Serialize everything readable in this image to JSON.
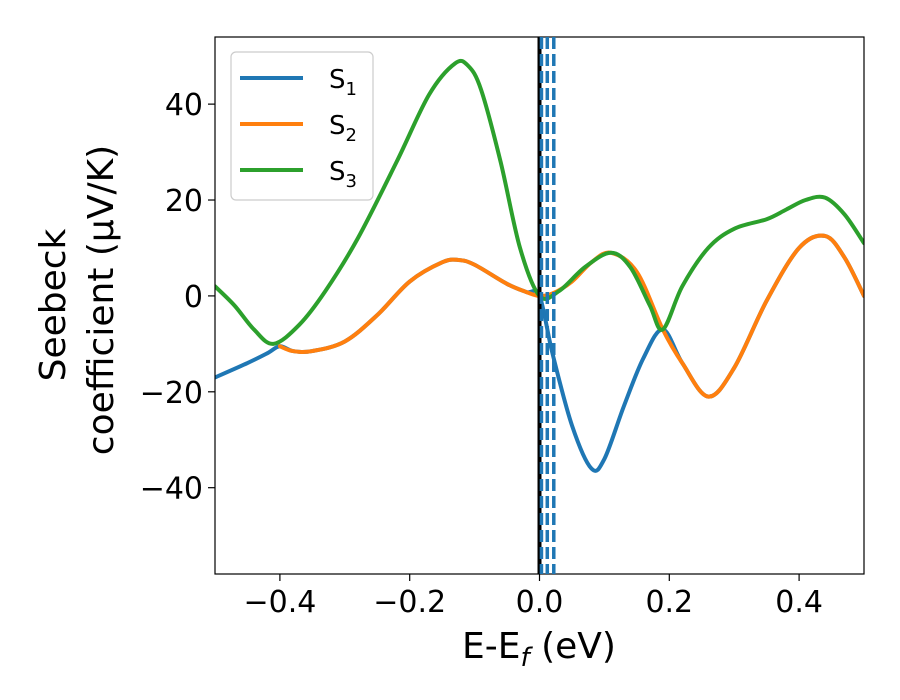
{
  "chart_data": {
    "type": "line",
    "title": "",
    "xlabel_main": "E-E",
    "xlabel_sub": "f",
    "xlabel_unit": " (eV)",
    "ylabel_line1": "Seebeck",
    "ylabel_line2": "coefficient  (μV/K)",
    "xlim": [
      -0.5,
      0.5
    ],
    "ylim": [
      -58,
      54
    ],
    "xticks": [
      -0.4,
      -0.2,
      0.0,
      0.2,
      0.4
    ],
    "xtick_labels": [
      "−0.4",
      "−0.2",
      "0.0",
      "0.2",
      "0.4"
    ],
    "yticks": [
      -40,
      -20,
      0,
      20,
      40
    ],
    "ytick_labels": [
      "−40",
      "−20",
      "0",
      "20",
      "40"
    ],
    "grid": false,
    "legend_position": "upper-left",
    "series": [
      {
        "name": "S",
        "subscript": "1",
        "color": "#1f77b4",
        "x": [
          -0.5,
          -0.45,
          -0.42,
          -0.4,
          -0.38,
          -0.35,
          -0.3,
          -0.25,
          -0.2,
          -0.15,
          -0.125,
          -0.1,
          -0.05,
          -0.02,
          0.0,
          0.02,
          0.05,
          0.08,
          0.1,
          0.13,
          0.16,
          0.19,
          0.22,
          0.26,
          0.3,
          0.35,
          0.4,
          0.44,
          0.47,
          0.5
        ],
        "y": [
          -17,
          -14,
          -12,
          -10.5,
          -11.5,
          -11.5,
          -9.5,
          -4,
          3,
          7,
          7.5,
          6.5,
          2.5,
          0.8,
          0,
          -12,
          -27,
          -36,
          -34,
          -23,
          -13,
          -7,
          -14,
          -21,
          -15,
          -1,
          10,
          12.5,
          8,
          0
        ]
      },
      {
        "name": "S",
        "subscript": "2",
        "color": "#ff7f0e",
        "x": [
          -0.4,
          -0.38,
          -0.35,
          -0.3,
          -0.25,
          -0.2,
          -0.15,
          -0.125,
          -0.1,
          -0.05,
          -0.02,
          0.0,
          0.02,
          0.05,
          0.08,
          0.11,
          0.15,
          0.19,
          0.22,
          0.26,
          0.3,
          0.35,
          0.4,
          0.44,
          0.47,
          0.5
        ],
        "y": [
          -10.5,
          -11.5,
          -11.5,
          -9.5,
          -4,
          3,
          7,
          7.5,
          6.5,
          2.5,
          0.8,
          0,
          0.5,
          3,
          7,
          9,
          5,
          -7,
          -14,
          -21,
          -15,
          -1,
          10,
          12.5,
          8,
          0
        ]
      },
      {
        "name": "S",
        "subscript": "3",
        "color": "#2ca02c",
        "x": [
          -0.5,
          -0.47,
          -0.44,
          -0.41,
          -0.37,
          -0.33,
          -0.28,
          -0.22,
          -0.17,
          -0.13,
          -0.11,
          -0.09,
          -0.06,
          -0.03,
          0.0,
          0.03,
          0.07,
          0.11,
          0.14,
          0.17,
          0.19,
          0.22,
          0.26,
          0.3,
          0.35,
          0.38,
          0.41,
          0.44,
          0.47,
          0.5
        ],
        "y": [
          2,
          -2,
          -7,
          -10,
          -6,
          1,
          12,
          28,
          42,
          48.5,
          48,
          43,
          28,
          10,
          0,
          1,
          6,
          9,
          6,
          -2,
          -7,
          2,
          10,
          14,
          16,
          18,
          20,
          20.5,
          17,
          11
        ]
      }
    ],
    "vlines": [
      {
        "x": 0.0,
        "color": "#000000",
        "style": "solid"
      },
      {
        "x": 0.003,
        "color": "#1f77b4",
        "style": "dashed"
      },
      {
        "x": 0.012,
        "color": "#1f77b4",
        "style": "dashed"
      },
      {
        "x": 0.022,
        "color": "#1f77b4",
        "style": "dashed"
      }
    ]
  }
}
